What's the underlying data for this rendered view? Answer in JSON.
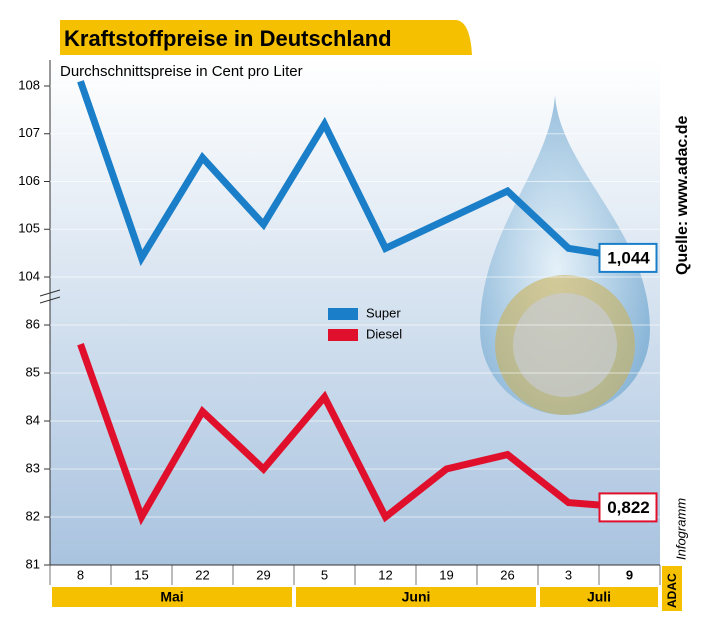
{
  "chart_data": {
    "type": "line",
    "title": "Kraftstoffpreise in Deutschland",
    "subtitle": "Durchschnittspreise in Cent pro Liter",
    "source": "Quelle: www.adac.de",
    "brand": "ADAC",
    "brand_suffix": "Infogramm",
    "categories": [
      "8",
      "15",
      "22",
      "29",
      "5",
      "12",
      "19",
      "26",
      "3",
      "9"
    ],
    "groups": [
      {
        "label": "Mai",
        "count": 4
      },
      {
        "label": "Juni",
        "count": 4
      },
      {
        "label": "Juli",
        "count": 2
      }
    ],
    "ylim": [
      104,
      108
    ],
    "yticks": [
      104,
      105,
      106,
      107,
      108
    ],
    "y2lim": [
      81,
      86
    ],
    "y2ticks": [
      81,
      82,
      83,
      84,
      85,
      86
    ],
    "legend": "center",
    "series": [
      {
        "name": "Super",
        "color": "#1a7fc8",
        "values": [
          108.1,
          104.4,
          106.5,
          105.1,
          107.2,
          104.6,
          105.2,
          105.8,
          104.6,
          104.4
        ],
        "value_labels": [
          null,
          null,
          null,
          null,
          null,
          null,
          null,
          null,
          null,
          "1,044"
        ]
      },
      {
        "name": "Diesel",
        "color": "#e0102c",
        "axis": "y2",
        "values": [
          85.6,
          82.0,
          84.2,
          83.0,
          84.5,
          82.0,
          83.0,
          83.3,
          82.3,
          82.2
        ],
        "value_labels": [
          null,
          null,
          null,
          null,
          null,
          null,
          null,
          null,
          null,
          "0,822"
        ]
      }
    ]
  }
}
